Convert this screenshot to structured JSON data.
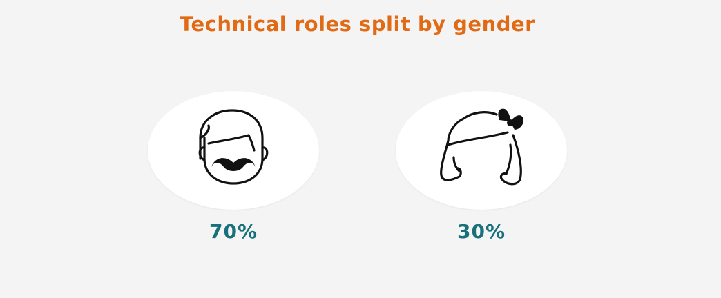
{
  "title": "Technical roles split by gender",
  "colors": {
    "title": "#e06b14",
    "value": "#17707a",
    "icon": "#111111"
  },
  "chart_data": {
    "type": "pictogram",
    "title": "Technical roles split by gender",
    "series": [
      {
        "icon": "man-with-mustache-icon",
        "value": 70,
        "label": "70%"
      },
      {
        "icon": "woman-with-bow-icon",
        "value": 30,
        "label": "30%"
      }
    ]
  }
}
